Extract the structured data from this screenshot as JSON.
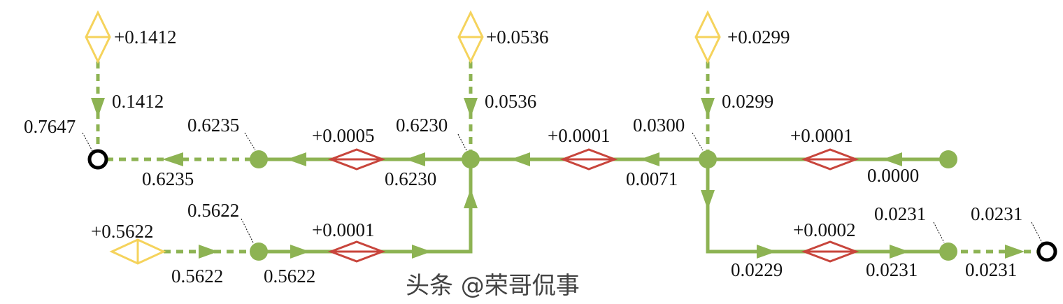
{
  "colors": {
    "flow": "#8db353",
    "loss": "#c8453c",
    "source": "#f5d35c",
    "terminal": "#000000"
  },
  "sources": {
    "s1": "+0.1412",
    "s2": "+0.0536",
    "s3": "+0.0299",
    "s4": "+0.5622"
  },
  "source_flows": {
    "s1": "0.1412",
    "s2": "0.0536",
    "s3": "0.0299"
  },
  "losses": {
    "l1": "+0.0005",
    "l2": "+0.0001",
    "l3": "+0.0001",
    "l4": "+0.0001",
    "l5": "+0.0002"
  },
  "nodes": {
    "n_out_left": "0.7647",
    "n1": "0.6235",
    "n2": "0.6230",
    "n3": "0.0300",
    "n4": "0.5622",
    "n5": "0.0231",
    "n_out_right": "0.0231"
  },
  "edges": {
    "e_left_out": "0.6235",
    "e_n2_l1": "0.6230",
    "e_n3_l2": "0.0071",
    "e_l3": "0.0000",
    "e_s4": "0.5622",
    "e_n4": "0.5622",
    "e_down": "0.0229",
    "e_n5_in": "0.0231",
    "e_n5_out": "0.0231"
  },
  "watermark": "头条 @荣哥侃事"
}
